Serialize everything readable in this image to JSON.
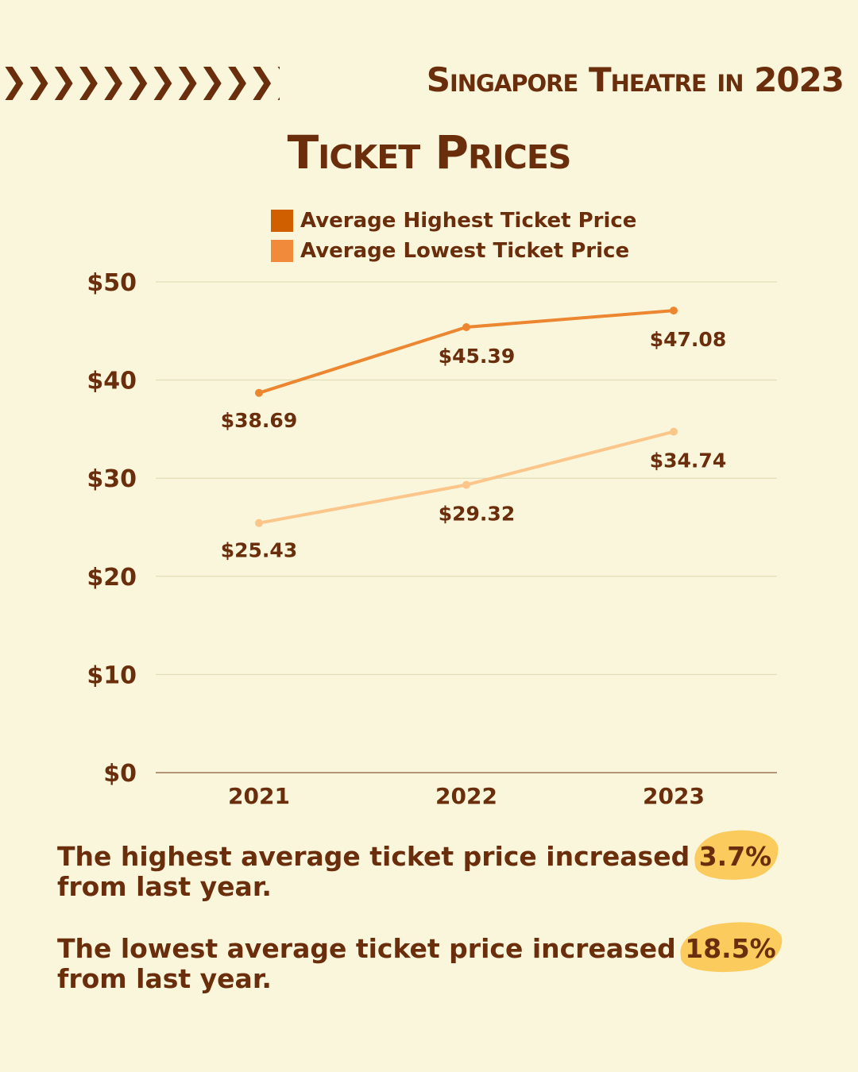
{
  "header": {
    "chevrons": "❯❯❯❯❯❯❯❯❯❯❯❯❯❯",
    "subtitle": "Singapore Theatre in 2023",
    "title": "Ticket Prices"
  },
  "colors": {
    "background": "#f9f6db",
    "text": "#6b2e0c",
    "highest_series": "#ec8630",
    "lowest_series": "#fcc58a",
    "legend_highest": "#d05f00",
    "legend_lowest": "#f18a3a",
    "highlight": "#fbcb5d"
  },
  "chart_data": {
    "type": "line",
    "title": "Ticket Prices",
    "categories": [
      "2021",
      "2022",
      "2023"
    ],
    "series": [
      {
        "name": "Average Highest Ticket Price",
        "values": [
          38.69,
          45.39,
          47.08
        ],
        "labels": [
          "$38.69",
          "$45.39",
          "$47.08"
        ]
      },
      {
        "name": "Average Lowest Ticket Price",
        "values": [
          25.43,
          29.32,
          34.74
        ],
        "labels": [
          "$25.43",
          "$29.32",
          "$34.74"
        ]
      }
    ],
    "y_ticks": [
      0,
      10,
      20,
      30,
      40,
      50
    ],
    "y_tick_labels": [
      "$0",
      "$10",
      "$20",
      "$30",
      "$40",
      "$50"
    ],
    "ylim": [
      0,
      50
    ],
    "xlabel": "",
    "ylabel": "",
    "grid": true,
    "legend": "top-center"
  },
  "notes": [
    {
      "before": "The highest average ticket price increased ",
      "highlight": "3.7%",
      "after": " from last year."
    },
    {
      "before": "The lowest average ticket price increased ",
      "highlight": "18.5%",
      "after": " from last year."
    }
  ]
}
